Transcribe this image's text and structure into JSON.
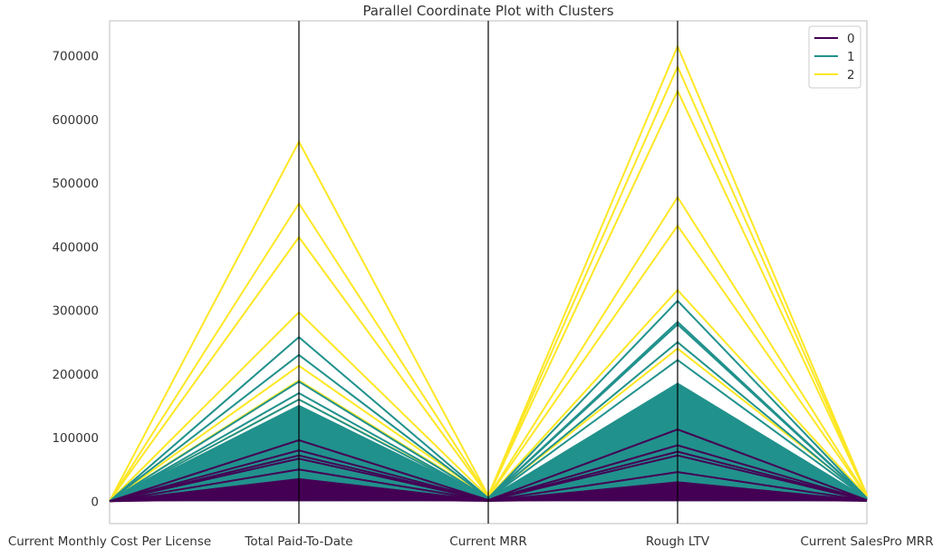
{
  "chart_data": {
    "type": "parallel_coordinates",
    "title": "Parallel Coordinate Plot with Clusters",
    "axes": [
      "Current Monthly Cost Per License",
      "Total Paid-To-Date",
      "Current MRR",
      "Rough LTV",
      "Current SalesPro MRR"
    ],
    "ylim": [
      -35000,
      755000
    ],
    "yticks": [
      0,
      100000,
      200000,
      300000,
      400000,
      500000,
      600000,
      700000
    ],
    "ytick_labels": [
      "0",
      "100000",
      "200000",
      "300000",
      "400000",
      "500000",
      "600000",
      "700000"
    ],
    "grid": false,
    "legend_position": "top-right",
    "clusters": [
      {
        "name": "0",
        "color": "#440154"
      },
      {
        "name": "1",
        "color": "#21918c"
      },
      {
        "name": "2",
        "color": "#fde725"
      }
    ],
    "series": [
      {
        "cluster": "2",
        "values": [
          500,
          565000,
          9000,
          715000,
          10000
        ]
      },
      {
        "cluster": "2",
        "values": [
          500,
          468000,
          8500,
          683000,
          9500
        ]
      },
      {
        "cluster": "2",
        "values": [
          500,
          415000,
          8000,
          645000,
          9000
        ]
      },
      {
        "cluster": "2",
        "values": [
          400,
          297000,
          7000,
          478000,
          8000
        ]
      },
      {
        "cluster": "2",
        "values": [
          400,
          213000,
          6500,
          433000,
          7500
        ]
      },
      {
        "cluster": "2",
        "values": [
          400,
          190000,
          6000,
          332000,
          7000
        ]
      },
      {
        "cluster": "2",
        "values": [
          300,
          160000,
          5500,
          240000,
          6500
        ]
      },
      {
        "cluster": "1",
        "values": [
          300,
          258000,
          5000,
          315000,
          5000
        ]
      },
      {
        "cluster": "1",
        "values": [
          300,
          230000,
          4800,
          282000,
          4800
        ]
      },
      {
        "cluster": "1",
        "values": [
          300,
          188000,
          4600,
          278000,
          4600
        ]
      },
      {
        "cluster": "1",
        "values": [
          300,
          170000,
          4400,
          250000,
          4400
        ]
      },
      {
        "cluster": "1",
        "values": [
          200,
          160000,
          4200,
          222000,
          4200
        ]
      },
      {
        "cluster": "1",
        "values": [
          200,
          150000,
          4000,
          185000,
          4000
        ]
      },
      {
        "cluster": "1",
        "values": [
          200,
          140000,
          3800,
          176000,
          3800
        ]
      },
      {
        "cluster": "1",
        "values": [
          200,
          130000,
          3600,
          168000,
          3600
        ]
      },
      {
        "cluster": "1",
        "values": [
          200,
          125000,
          3400,
          160000,
          3400
        ]
      },
      {
        "cluster": "1",
        "values": [
          200,
          115000,
          3200,
          150000,
          3200
        ]
      },
      {
        "cluster": "1",
        "values": [
          200,
          108000,
          3000,
          140000,
          3000
        ]
      },
      {
        "cluster": "1",
        "values": [
          150,
          100000,
          2800,
          130000,
          2800
        ]
      },
      {
        "cluster": "1",
        "values": [
          150,
          90000,
          2600,
          120000,
          2600
        ]
      },
      {
        "cluster": "1",
        "values": [
          150,
          82000,
          2400,
          112000,
          2400
        ]
      },
      {
        "cluster": "0",
        "values": [
          100,
          96000,
          2000,
          113000,
          2000
        ]
      },
      {
        "cluster": "0",
        "values": [
          100,
          80000,
          1800,
          88000,
          1800
        ]
      },
      {
        "cluster": "0",
        "values": [
          100,
          72000,
          1600,
          78000,
          1600
        ]
      },
      {
        "cluster": "0",
        "values": [
          100,
          67000,
          1400,
          72000,
          1400
        ]
      },
      {
        "cluster": "0",
        "values": [
          80,
          50000,
          1200,
          46000,
          1200
        ]
      },
      {
        "cluster": "0",
        "values": [
          80,
          35000,
          1000,
          30000,
          1000
        ]
      },
      {
        "cluster": "0",
        "values": [
          80,
          20000,
          800,
          15000,
          800
        ]
      },
      {
        "cluster": "0",
        "values": [
          80,
          5000,
          500,
          5000,
          500
        ]
      }
    ]
  }
}
